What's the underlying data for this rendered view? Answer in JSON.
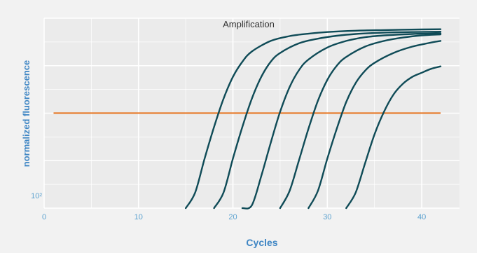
{
  "chart_data": {
    "type": "line",
    "title": "Amplification",
    "xlabel": "Cycles",
    "ylabel": "normalized fluorescence",
    "xlim": [
      0,
      44
    ],
    "x_ticks": [
      0,
      10,
      20,
      30,
      40
    ],
    "y_scale": "log",
    "y_ticks": [
      {
        "value": 100,
        "label": "10²"
      }
    ],
    "ylim": [
      80,
      2200
    ],
    "grid": true,
    "threshold": {
      "x": [
        1,
        42
      ],
      "y": 420,
      "color": "#e6731f"
    },
    "series_color": "#0f4b57",
    "series": [
      {
        "x": [
          15,
          16,
          17,
          18,
          19,
          20,
          21,
          22,
          24,
          26,
          28,
          30,
          33,
          36,
          40,
          42
        ],
        "y": [
          80,
          105,
          190,
          330,
          540,
          790,
          1030,
          1230,
          1480,
          1610,
          1680,
          1730,
          1770,
          1790,
          1810,
          1815
        ]
      },
      {
        "x": [
          18,
          19,
          20,
          21,
          22,
          23,
          24,
          25,
          27,
          29,
          31,
          33,
          36,
          39,
          42
        ],
        "y": [
          80,
          105,
          190,
          330,
          540,
          790,
          1030,
          1200,
          1420,
          1540,
          1620,
          1670,
          1710,
          1730,
          1740
        ]
      },
      {
        "x": [
          21,
          22,
          23,
          24,
          25,
          26,
          27,
          28,
          30,
          32,
          34,
          36,
          39,
          42
        ],
        "y": [
          80,
          84,
          140,
          250,
          430,
          660,
          890,
          1070,
          1320,
          1480,
          1580,
          1630,
          1670,
          1690
        ]
      },
      {
        "x": [
          25,
          26,
          27,
          28,
          29,
          30,
          31,
          32,
          34,
          36,
          38,
          40,
          42
        ],
        "y": [
          80,
          108,
          185,
          320,
          520,
          750,
          960,
          1120,
          1340,
          1480,
          1570,
          1630,
          1660
        ]
      },
      {
        "x": [
          28,
          29,
          30,
          31,
          32,
          33,
          34,
          35,
          37,
          39,
          41,
          42
        ],
        "y": [
          80,
          108,
          190,
          320,
          510,
          710,
          880,
          1010,
          1200,
          1340,
          1440,
          1480
        ]
      },
      {
        "x": [
          32,
          33,
          34,
          35,
          36,
          37,
          38,
          39,
          40,
          41,
          42
        ],
        "y": [
          80,
          105,
          175,
          290,
          430,
          580,
          700,
          790,
          850,
          910,
          950
        ]
      }
    ]
  }
}
